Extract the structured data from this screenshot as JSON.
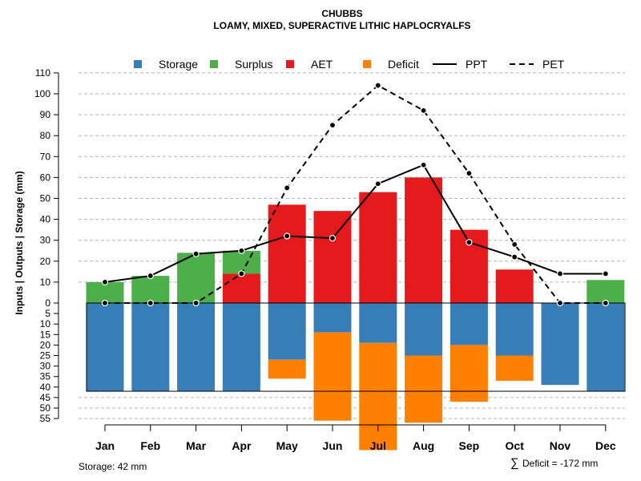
{
  "chart_data": {
    "type": "bar",
    "title": "CHUBBS",
    "subtitle": "LOAMY, MIXED, SUPERACTIVE LITHIC HAPLOCRYALFS",
    "ylabel": "Inputs | Outputs | Storage     (mm)",
    "categories": [
      "Jan",
      "Feb",
      "Mar",
      "Apr",
      "May",
      "Jun",
      "Jul",
      "Aug",
      "Sep",
      "Oct",
      "Nov",
      "Dec"
    ],
    "upper_ticks": [
      0,
      10,
      20,
      30,
      40,
      50,
      60,
      70,
      80,
      90,
      100,
      110
    ],
    "lower_ticks": [
      5,
      10,
      15,
      20,
      25,
      30,
      35,
      40,
      45,
      50,
      55
    ],
    "ylim_upper": [
      0,
      110
    ],
    "ylim_lower": [
      0,
      55
    ],
    "legend": [
      "Storage",
      "Surplus",
      "AET",
      "Deficit",
      "PPT",
      "PET"
    ],
    "colors": {
      "storage": "#377eb8",
      "surplus": "#4daf4a",
      "aet": "#e41a1c",
      "deficit": "#ff7f00",
      "line": "#000000",
      "grid": "#b4b4b4"
    },
    "series": [
      {
        "name": "AET",
        "values": [
          0,
          0,
          0,
          14,
          47,
          44,
          53,
          60,
          35,
          16,
          0,
          0
        ]
      },
      {
        "name": "Surplus",
        "values": [
          10,
          13,
          24,
          11,
          0,
          0,
          0,
          0,
          0,
          0,
          0,
          11
        ]
      },
      {
        "name": "Storage",
        "values": [
          42,
          42,
          42,
          42,
          27,
          14,
          19,
          25,
          20,
          25,
          39,
          42
        ]
      },
      {
        "name": "Deficit",
        "values": [
          0,
          0,
          0,
          0,
          9,
          42,
          51,
          32,
          27,
          12,
          0,
          0
        ]
      },
      {
        "name": "PPT",
        "values": [
          10,
          13,
          23.5,
          25,
          32,
          31,
          57,
          66,
          29,
          22,
          14,
          14
        ]
      },
      {
        "name": "PET",
        "values": [
          0,
          0,
          0,
          14,
          55,
          85,
          104,
          92,
          62,
          28,
          0,
          0
        ]
      }
    ],
    "storage_capacity": 42,
    "storage_label": "Storage: 42 mm",
    "deficit_sum_symbol": "∑",
    "deficit_label": "Deficit = -172 mm"
  }
}
